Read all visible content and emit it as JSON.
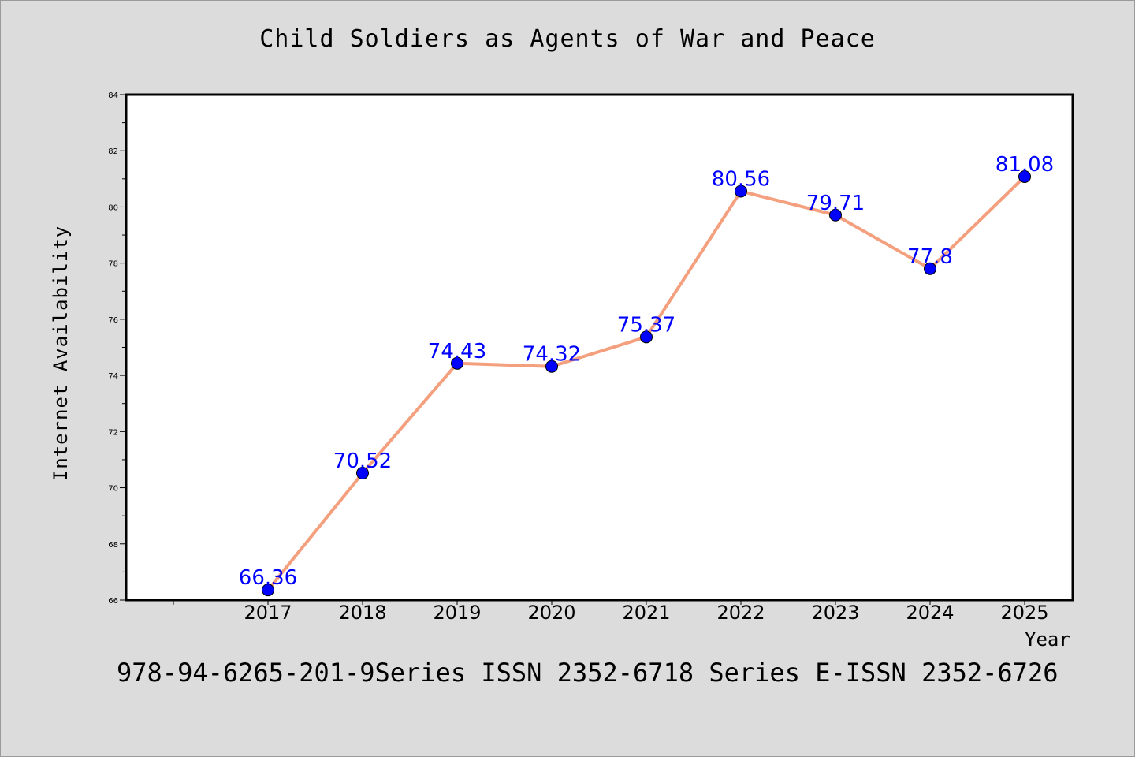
{
  "chart_data": {
    "type": "line",
    "title": "Child Soldiers as Agents of War and Peace",
    "xlabel": "Year",
    "ylabel": "Internet Availability",
    "x": [
      "2017",
      "2018",
      "2019",
      "2020",
      "2021",
      "2022",
      "2023",
      "2024",
      "2025"
    ],
    "series": [
      {
        "values": [
          66.36,
          70.52,
          74.43,
          74.32,
          75.37,
          80.56,
          79.71,
          77.8,
          81.08
        ],
        "data_labels": [
          "66.36",
          "70.52",
          "74.43",
          "74.32",
          "75.37",
          "80.56",
          "79.71",
          "77.8",
          "81.08"
        ]
      }
    ],
    "ylim": [
      66,
      84
    ],
    "yticks": [
      "66",
      "68",
      "70",
      "72",
      "74",
      "76",
      "78",
      "80",
      "82",
      "84"
    ],
    "grid": false,
    "legend": "none",
    "colors": {
      "line": "#f4a07e",
      "marker": "#0000ff",
      "data_label": "#0000ff",
      "background": "#dcdcdc",
      "plot_area": "#ffffff"
    }
  },
  "footer_note": "978-94-6265-201-9Series ISSN 2352-6718 Series E-ISSN 2352-6726"
}
